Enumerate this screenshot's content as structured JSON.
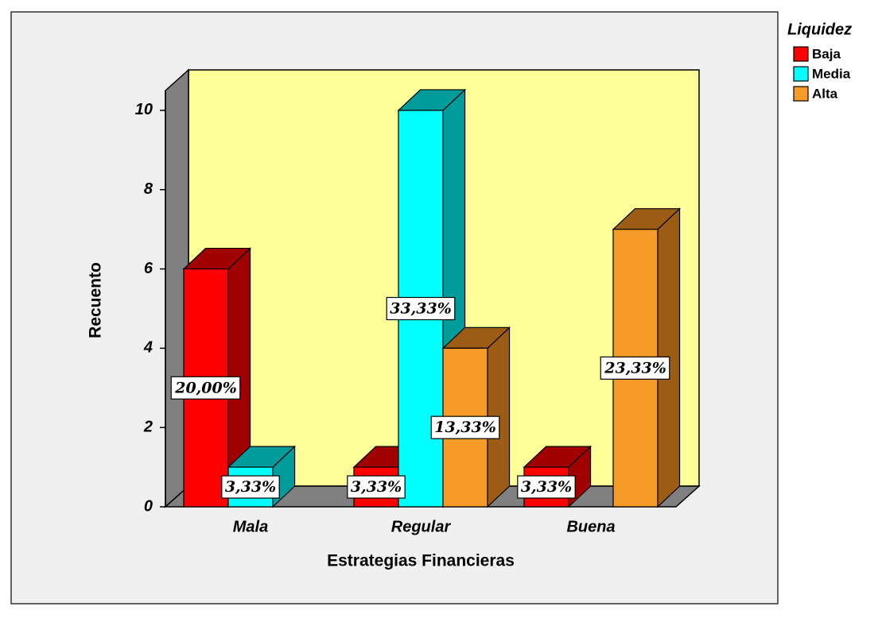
{
  "chart_data": {
    "type": "bar3d",
    "x_label": "Estrategias Financieras",
    "y_label": "Recuento",
    "legend_title": "Liquidez",
    "legend": "top-right",
    "categories": [
      "Mala",
      "Regular",
      "Buena"
    ],
    "series": [
      {
        "name": "Baja",
        "color": "#ff0000",
        "side_color": "#a00000",
        "values": [
          6,
          1,
          1
        ],
        "value_labels": [
          "20,00%",
          "3,33%",
          "3,33%"
        ]
      },
      {
        "name": "Media",
        "color": "#00ffff",
        "side_color": "#009c9c",
        "values": [
          1,
          10,
          null
        ],
        "value_labels": [
          "3,33%",
          "33,33%",
          null
        ]
      },
      {
        "name": "Alta",
        "color": "#f79b28",
        "side_color": "#9c5c14",
        "values": [
          null,
          4,
          7
        ],
        "value_labels": [
          null,
          "13,33%",
          "23,33%"
        ]
      }
    ],
    "ylim": [
      0,
      10.5
    ],
    "yticks": [
      0,
      2,
      4,
      6,
      8,
      10
    ],
    "wall_color": "#ffff99"
  }
}
